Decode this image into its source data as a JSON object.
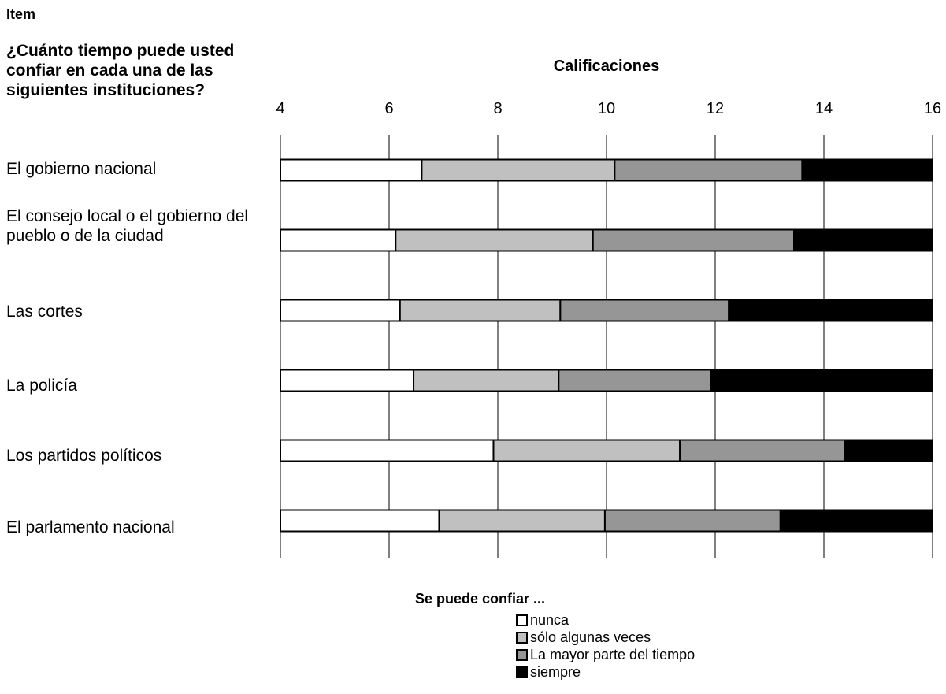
{
  "header": {
    "item_label": "Item",
    "question": "¿Cuánto tiempo puede usted confiar en cada una de las siguientes instituciones?"
  },
  "chart_data": {
    "type": "bar",
    "orientation": "horizontal",
    "stacked": true,
    "xlabel": "Calificaciones",
    "xlim": [
      4,
      16
    ],
    "xticks": [
      "4",
      "6",
      "8",
      "10",
      "12",
      "14",
      "16"
    ],
    "grid": true,
    "categories": [
      "El gobierno nacional",
      "El consejo local o el gobierno del pueblo o de la ciudad",
      "Las cortes",
      "La policía",
      "Los partidos políticos",
      "El parlamento nacional"
    ],
    "boundaries": [
      [
        6.6,
        10.15,
        13.6
      ],
      [
        6.12,
        9.75,
        13.45
      ],
      [
        6.2,
        9.15,
        12.25
      ],
      [
        6.45,
        9.12,
        11.92
      ],
      [
        7.92,
        11.35,
        14.38
      ],
      [
        6.92,
        9.97,
        13.2
      ]
    ],
    "series": [
      {
        "name": "nunca",
        "color": "#ffffff"
      },
      {
        "name": "sólo algunas veces",
        "color": "#c0c0c0"
      },
      {
        "name": "La mayor parte del tiempo",
        "color": "#969696"
      },
      {
        "name": "siempre",
        "color": "#000000"
      }
    ],
    "legend_title": "Se puede confiar ...",
    "legend_position": "bottom"
  }
}
